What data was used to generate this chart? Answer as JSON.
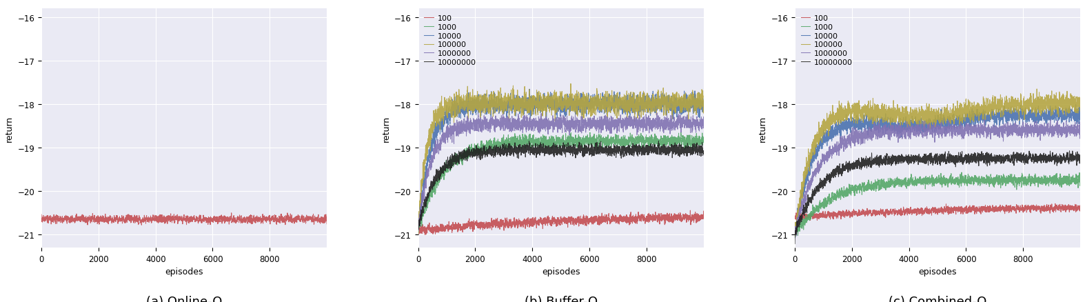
{
  "figsize": [
    15.74,
    4.39
  ],
  "dpi": 100,
  "xlim": [
    0,
    10000
  ],
  "ylim": [
    -21.3,
    -15.8
  ],
  "yticks": [
    -21,
    -20,
    -19,
    -18,
    -17,
    -16
  ],
  "xticks": [
    0,
    2000,
    4000,
    6000,
    8000
  ],
  "xlabel": "episodes",
  "ylabel": "return",
  "bg_color": "#eaeaf4",
  "subtitles": [
    "(a) Online-Q",
    "(b) Buffer-Q",
    "(c) Combined-Q"
  ],
  "legend_labels": [
    "100",
    "1000",
    "10000",
    "100000",
    "1000000",
    "10000000"
  ],
  "colors": {
    "100": "#c44e52",
    "1000": "#55a868",
    "10000": "#4c72b0",
    "100000": "#b5a642",
    "1000000": "#8172b2",
    "10000000": "#222222"
  },
  "buffer_q": {
    "100": {
      "start": -20.9,
      "plateau": -20.55,
      "rise_ep": 8000,
      "shape": 0.3,
      "noise": 0.13
    },
    "1000": {
      "start": -20.9,
      "plateau": -18.85,
      "rise_ep": 3000,
      "shape": 0.7,
      "noise": 0.18
    },
    "10000": {
      "start": -20.85,
      "plateau": -18.0,
      "rise_ep": 2000,
      "shape": 0.9,
      "noise": 0.28
    },
    "100000": {
      "start": -20.85,
      "plateau": -17.98,
      "rise_ep": 1500,
      "shape": 1.0,
      "noise": 0.32
    },
    "1000000": {
      "start": -20.85,
      "plateau": -18.45,
      "rise_ep": 2000,
      "shape": 0.9,
      "noise": 0.22
    },
    "10000000": {
      "start": -20.85,
      "plateau": -19.05,
      "rise_ep": 2500,
      "shape": 0.8,
      "noise": 0.17
    }
  },
  "combined_q": {
    "100": {
      "start": -20.6,
      "plateau": -20.35,
      "rise_ep": 8000,
      "shape": 0.3,
      "peak": null,
      "peak_drop": 0,
      "noise": 0.1
    },
    "1000": {
      "start": -21.0,
      "plateau": -19.75,
      "rise_ep": 3500,
      "shape": 0.6,
      "peak": null,
      "peak_drop": 0,
      "noise": 0.15
    },
    "10000": {
      "start": -21.0,
      "plateau": -18.25,
      "rise_ep": 2500,
      "shape": 0.8,
      "peak": 4000,
      "peak_drop": 0.25,
      "noise": 0.22
    },
    "100000": {
      "start": -21.0,
      "plateau": -18.0,
      "rise_ep": 2500,
      "shape": 0.85,
      "peak": 4500,
      "peak_drop": 0.3,
      "noise": 0.28
    },
    "1000000": {
      "start": -21.0,
      "plateau": -18.6,
      "rise_ep": 3000,
      "shape": 0.75,
      "peak": null,
      "peak_drop": 0,
      "noise": 0.2
    },
    "10000000": {
      "start": -21.0,
      "plateau": -19.25,
      "rise_ep": 3000,
      "shape": 0.7,
      "peak": null,
      "peak_drop": 0,
      "noise": 0.15
    }
  }
}
